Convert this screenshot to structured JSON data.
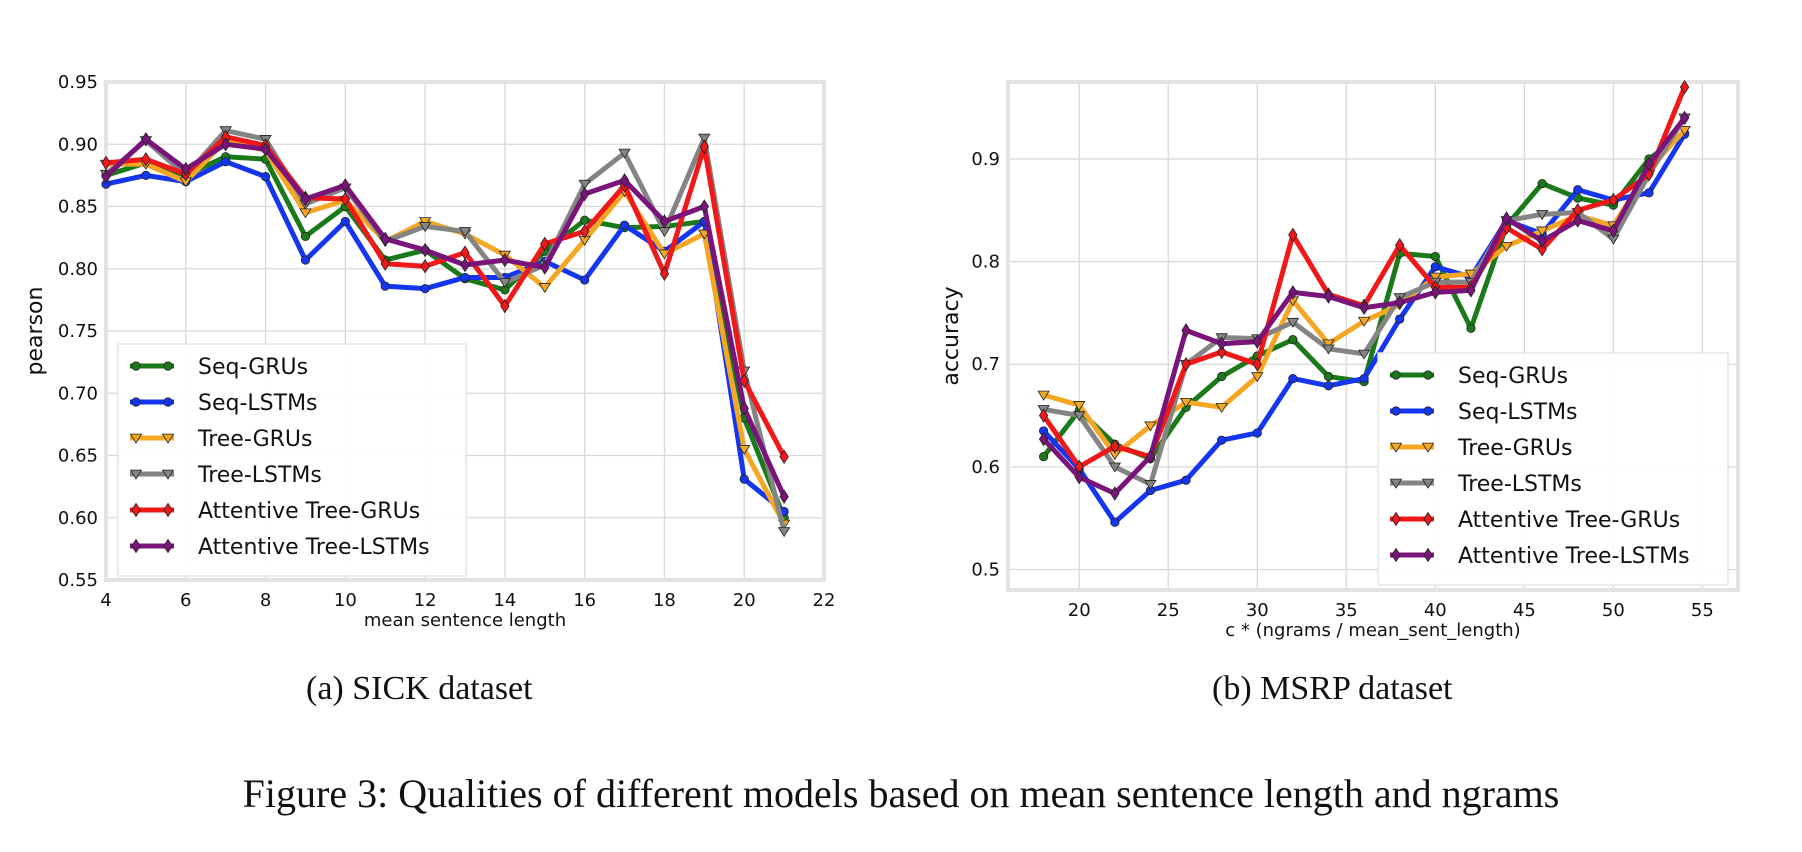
{
  "figure_caption": "Figure 3: Qualities of different models based on mean sentence length and ngrams",
  "chart_data": [
    {
      "type": "line",
      "caption": "(a)  SICK dataset",
      "title": "",
      "xlabel": "mean sentence length",
      "ylabel": "pearson",
      "xlim": [
        4,
        22
      ],
      "ylim": [
        0.55,
        0.95
      ],
      "xticks": [
        4,
        6,
        8,
        10,
        12,
        14,
        16,
        18,
        20,
        22
      ],
      "xtick_labels": [
        "4",
        "6",
        "8",
        "10",
        "12",
        "14",
        "16",
        "18",
        "20",
        "22"
      ],
      "yticks": [
        0.55,
        0.6,
        0.65,
        0.7,
        0.75,
        0.8,
        0.85,
        0.9,
        0.95
      ],
      "ytick_labels": [
        "0.55",
        "0.60",
        "0.65",
        "0.70",
        "0.75",
        "0.80",
        "0.85",
        "0.90",
        "0.95"
      ],
      "grid": true,
      "legend_position": "lower-left",
      "x": [
        4,
        5,
        6,
        7,
        8,
        9,
        10,
        11,
        12,
        13,
        14,
        15,
        16,
        17,
        18,
        19,
        20,
        21
      ],
      "series": [
        {
          "name": "Seq-GRUs",
          "color": "#1a7a1a",
          "marker": "circle",
          "values": [
            0.875,
            0.885,
            0.875,
            0.89,
            0.888,
            0.826,
            0.85,
            0.807,
            0.815,
            0.792,
            0.783,
            0.814,
            0.839,
            0.833,
            0.834,
            0.838,
            0.68,
            0.6
          ]
        },
        {
          "name": "Seq-LSTMs",
          "color": "#1536f0",
          "marker": "circle",
          "values": [
            0.868,
            0.875,
            0.87,
            0.886,
            0.874,
            0.807,
            0.838,
            0.786,
            0.784,
            0.793,
            0.793,
            0.806,
            0.791,
            0.835,
            0.814,
            0.838,
            0.631,
            0.605
          ]
        },
        {
          "name": "Tree-GRUs",
          "color": "#f5a623",
          "marker": "triangle",
          "values": [
            0.884,
            0.884,
            0.87,
            0.903,
            0.895,
            0.845,
            0.855,
            0.822,
            0.838,
            0.828,
            0.811,
            0.785,
            0.823,
            0.862,
            0.812,
            0.828,
            0.655,
            0.595
          ]
        },
        {
          "name": "Tree-LSTMs",
          "color": "#848484",
          "marker": "triangle",
          "values": [
            0.876,
            0.903,
            0.875,
            0.911,
            0.904,
            0.852,
            0.865,
            0.822,
            0.834,
            0.83,
            0.789,
            0.803,
            0.868,
            0.893,
            0.83,
            0.905,
            0.718,
            0.589
          ]
        },
        {
          "name": "Attentive Tree-GRUs",
          "color": "#f01818",
          "marker": "diamond",
          "values": [
            0.885,
            0.888,
            0.876,
            0.906,
            0.899,
            0.857,
            0.856,
            0.804,
            0.802,
            0.813,
            0.77,
            0.82,
            0.83,
            0.867,
            0.796,
            0.898,
            0.71,
            0.649
          ]
        },
        {
          "name": "Attentive Tree-LSTMs",
          "color": "#7a147a",
          "marker": "diamond",
          "values": [
            0.874,
            0.904,
            0.88,
            0.9,
            0.896,
            0.856,
            0.867,
            0.824,
            0.815,
            0.803,
            0.807,
            0.801,
            0.86,
            0.871,
            0.838,
            0.85,
            0.688,
            0.617
          ]
        }
      ]
    },
    {
      "type": "line",
      "caption": "(b)  MSRP dataset",
      "title": "",
      "xlabel": "c * (ngrams / mean_sent_length)",
      "ylabel": "accuracy",
      "xlim": [
        16,
        57
      ],
      "ylim": [
        0.48,
        0.975
      ],
      "xticks": [
        20,
        25,
        30,
        35,
        40,
        45,
        50,
        55
      ],
      "xtick_labels": [
        "20",
        "25",
        "30",
        "35",
        "40",
        "45",
        "50",
        "55"
      ],
      "yticks": [
        0.5,
        0.6,
        0.7,
        0.8,
        0.9
      ],
      "ytick_labels": [
        "0.5",
        "0.6",
        "0.7",
        "0.8",
        "0.9"
      ],
      "grid": true,
      "legend_position": "lower-right",
      "x": [
        18,
        20,
        22,
        24,
        26,
        28,
        30,
        32,
        34,
        36,
        38,
        40,
        42,
        44,
        46,
        48,
        50,
        52,
        54
      ],
      "series": [
        {
          "name": "Seq-GRUs",
          "color": "#1a7a1a",
          "marker": "circle",
          "values": [
            0.61,
            0.655,
            0.622,
            0.608,
            0.658,
            0.688,
            0.708,
            0.724,
            0.688,
            0.683,
            0.808,
            0.805,
            0.735,
            0.835,
            0.876,
            0.862,
            0.855,
            0.9,
            0.925
          ]
        },
        {
          "name": "Seq-LSTMs",
          "color": "#1536f0",
          "marker": "circle",
          "values": [
            0.635,
            0.598,
            0.546,
            0.577,
            0.587,
            0.626,
            0.633,
            0.686,
            0.679,
            0.686,
            0.744,
            0.795,
            0.785,
            0.84,
            0.827,
            0.87,
            0.86,
            0.867,
            0.924
          ]
        },
        {
          "name": "Tree-GRUs",
          "color": "#f5a623",
          "marker": "triangle",
          "values": [
            0.67,
            0.66,
            0.612,
            0.64,
            0.663,
            0.658,
            0.688,
            0.762,
            0.72,
            0.742,
            0.758,
            0.785,
            0.788,
            0.815,
            0.83,
            0.845,
            0.835,
            0.89,
            0.928
          ]
        },
        {
          "name": "Tree-LSTMs",
          "color": "#848484",
          "marker": "triangle",
          "values": [
            0.656,
            0.65,
            0.6,
            0.583,
            0.7,
            0.726,
            0.725,
            0.741,
            0.715,
            0.71,
            0.765,
            0.78,
            0.78,
            0.84,
            0.846,
            0.848,
            0.822,
            0.885,
            0.94
          ]
        },
        {
          "name": "Attentive Tree-GRUs",
          "color": "#f01818",
          "marker": "diamond",
          "values": [
            0.65,
            0.6,
            0.62,
            0.61,
            0.7,
            0.712,
            0.7,
            0.826,
            0.768,
            0.757,
            0.816,
            0.775,
            0.775,
            0.833,
            0.812,
            0.85,
            0.86,
            0.885,
            0.97
          ]
        },
        {
          "name": "Attentive Tree-LSTMs",
          "color": "#7a147a",
          "marker": "diamond",
          "values": [
            0.627,
            0.59,
            0.574,
            0.61,
            0.733,
            0.72,
            0.722,
            0.77,
            0.766,
            0.755,
            0.76,
            0.77,
            0.772,
            0.842,
            0.82,
            0.84,
            0.83,
            0.895,
            0.94
          ]
        }
      ]
    }
  ]
}
